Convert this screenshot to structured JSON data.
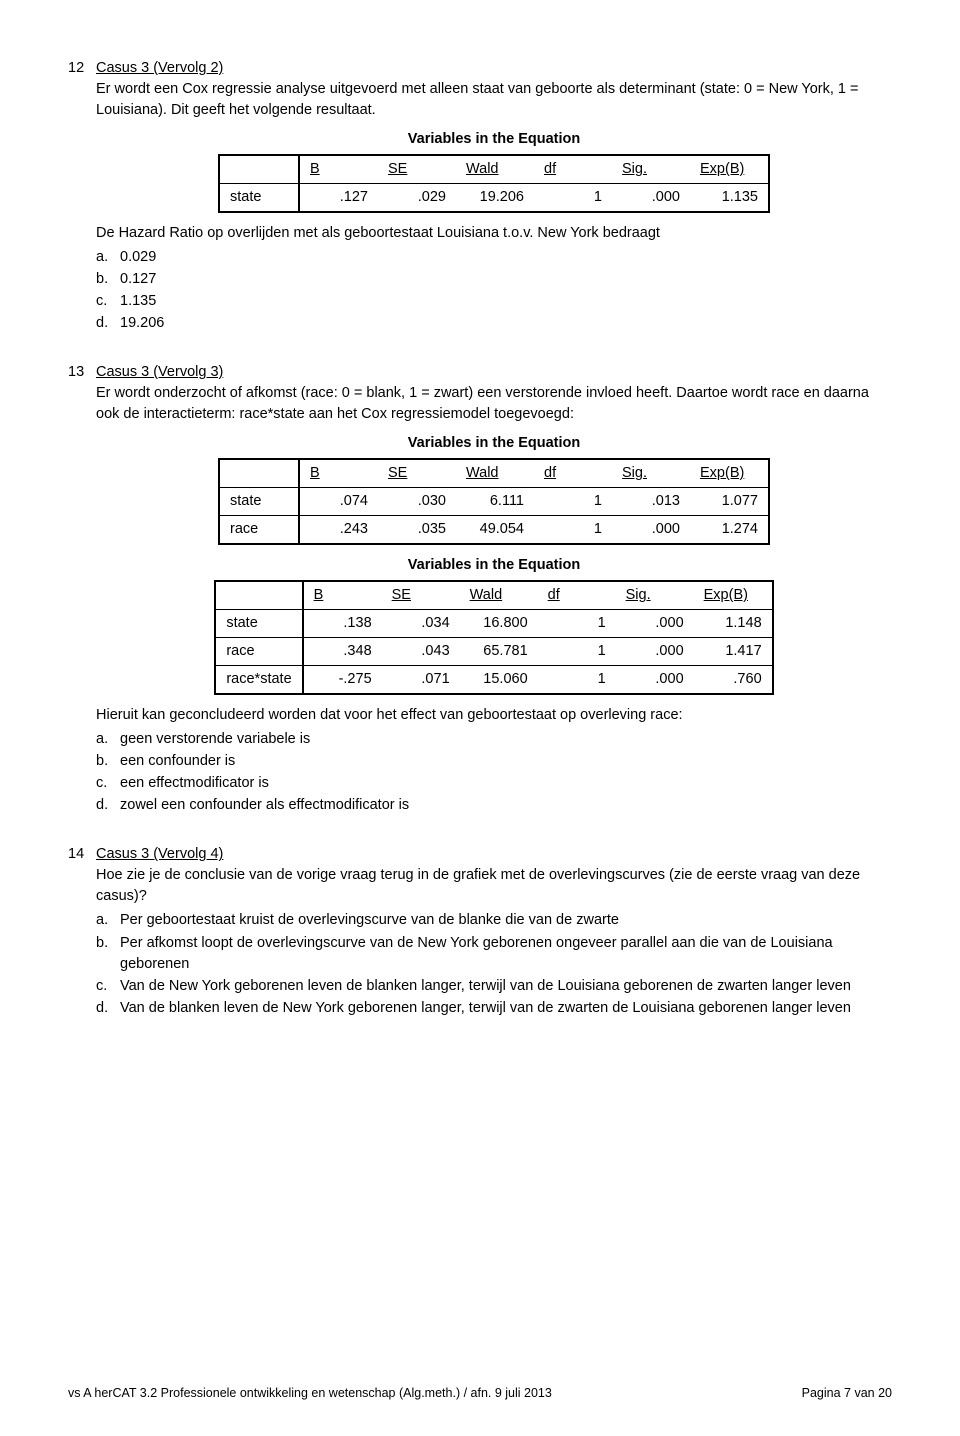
{
  "q12": {
    "num": "12",
    "title": "Casus 3 (Vervolg 2)",
    "intro": "Er wordt een Cox regressie analyse uitgevoerd met alleen staat van geboorte als determinant (state: 0 = New York, 1 = Louisiana). Dit geeft het volgende resultaat.",
    "table_title": "Variables in the Equation",
    "headers": [
      "",
      "B",
      "SE",
      "Wald",
      "df",
      "Sig.",
      "Exp(B)"
    ],
    "rows": [
      [
        "state",
        ".127",
        ".029",
        "19.206",
        "1",
        ".000",
        "1.135"
      ]
    ],
    "after": "De Hazard Ratio op overlijden met als geboortestaat Louisiana t.o.v. New York bedraagt",
    "opts": [
      {
        "l": "a.",
        "t": "0.029"
      },
      {
        "l": "b.",
        "t": "0.127"
      },
      {
        "l": "c.",
        "t": "1.135"
      },
      {
        "l": "d.",
        "t": "19.206"
      }
    ]
  },
  "q13": {
    "num": "13",
    "title": "Casus 3 (Vervolg 3)",
    "intro": "Er wordt onderzocht of afkomst (race: 0 = blank, 1 = zwart) een verstorende invloed heeft. Daartoe wordt race en daarna ook de interactieterm: race*state aan het Cox regressiemodel toegevoegd:",
    "table_title": "Variables in the Equation",
    "headers": [
      "",
      "B",
      "SE",
      "Wald",
      "df",
      "Sig.",
      "Exp(B)"
    ],
    "rows1": [
      [
        "state",
        ".074",
        ".030",
        "6.111",
        "1",
        ".013",
        "1.077"
      ],
      [
        "race",
        ".243",
        ".035",
        "49.054",
        "1",
        ".000",
        "1.274"
      ]
    ],
    "rows2": [
      [
        "state",
        ".138",
        ".034",
        "16.800",
        "1",
        ".000",
        "1.148"
      ],
      [
        "race",
        ".348",
        ".043",
        "65.781",
        "1",
        ".000",
        "1.417"
      ],
      [
        "race*state",
        "-.275",
        ".071",
        "15.060",
        "1",
        ".000",
        ".760"
      ]
    ],
    "after": "Hieruit kan geconcludeerd worden dat voor het effect van geboortestaat op overleving race:",
    "opts": [
      {
        "l": "a.",
        "t": "geen verstorende variabele is"
      },
      {
        "l": "b.",
        "t": "een confounder is"
      },
      {
        "l": "c.",
        "t": "een effectmodificator is"
      },
      {
        "l": "d.",
        "t": "zowel een confounder als effectmodificator is"
      }
    ]
  },
  "q14": {
    "num": "14",
    "title": "Casus 3 (Vervolg 4)",
    "intro": "Hoe zie je de conclusie van de vorige vraag terug in de grafiek met de overlevingscurves (zie de eerste vraag van deze casus)?",
    "opts": [
      {
        "l": "a.",
        "t": "Per geboortestaat kruist de overlevingscurve van de blanke die van de zwarte"
      },
      {
        "l": "b.",
        "t": "Per afkomst loopt de overlevingscurve van de New York geborenen ongeveer parallel aan die van de Louisiana geborenen"
      },
      {
        "l": "c.",
        "t": "Van de New York geborenen leven de blanken langer, terwijl van de Louisiana geborenen de zwarten langer leven"
      },
      {
        "l": "d.",
        "t": "Van de blanken leven de New York geborenen langer, terwijl van de zwarten de Louisiana geborenen langer leven"
      }
    ]
  },
  "footer": {
    "left": "vs A herCAT 3.2 Professionele ontwikkeling en wetenschap (Alg.meth.) / afn. 9 juli 2013",
    "right": "Pagina 7 van 20"
  }
}
